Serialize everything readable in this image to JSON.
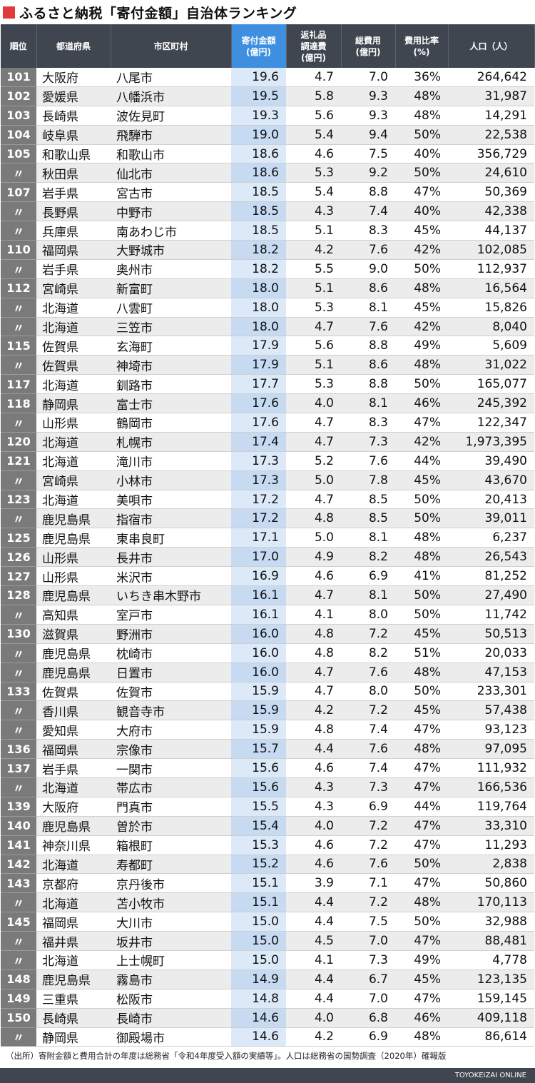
{
  "title": "ふるさと納税「寄付金額」自治体ランキング",
  "colors": {
    "title_mark": "#e0393e",
    "header_bg": "#3f4650",
    "highlight_header": "#3f8fe0"
  },
  "headers": {
    "rank": "順位",
    "pref": "都道府県",
    "city": "市区町村",
    "donation": [
      "寄付金額",
      "(億円)"
    ],
    "gift": [
      "返礼品",
      "調達費",
      "(億円)"
    ],
    "total": [
      "総費用",
      "(億円)"
    ],
    "ratio": [
      "費用比率",
      "(%)"
    ],
    "pop": "人口（人）"
  },
  "rows": [
    [
      "101",
      "大阪府",
      "八尾市",
      "19.6",
      "4.7",
      "7.0",
      "36%",
      "264,642"
    ],
    [
      "102",
      "愛媛県",
      "八幡浜市",
      "19.5",
      "5.8",
      "9.3",
      "48%",
      "31,987"
    ],
    [
      "103",
      "長崎県",
      "波佐見町",
      "19.3",
      "5.6",
      "9.3",
      "48%",
      "14,291"
    ],
    [
      "104",
      "岐阜県",
      "飛騨市",
      "19.0",
      "5.4",
      "9.4",
      "50%",
      "22,538"
    ],
    [
      "105",
      "和歌山県",
      "和歌山市",
      "18.6",
      "4.6",
      "7.5",
      "40%",
      "356,729"
    ],
    [
      "〃",
      "秋田県",
      "仙北市",
      "18.6",
      "5.3",
      "9.2",
      "50%",
      "24,610"
    ],
    [
      "107",
      "岩手県",
      "宮古市",
      "18.5",
      "5.4",
      "8.8",
      "47%",
      "50,369"
    ],
    [
      "〃",
      "長野県",
      "中野市",
      "18.5",
      "4.3",
      "7.4",
      "40%",
      "42,338"
    ],
    [
      "〃",
      "兵庫県",
      "南あわじ市",
      "18.5",
      "5.1",
      "8.3",
      "45%",
      "44,137"
    ],
    [
      "110",
      "福岡県",
      "大野城市",
      "18.2",
      "4.2",
      "7.6",
      "42%",
      "102,085"
    ],
    [
      "〃",
      "岩手県",
      "奥州市",
      "18.2",
      "5.5",
      "9.0",
      "50%",
      "112,937"
    ],
    [
      "112",
      "宮崎県",
      "新富町",
      "18.0",
      "5.1",
      "8.6",
      "48%",
      "16,564"
    ],
    [
      "〃",
      "北海道",
      "八雲町",
      "18.0",
      "5.3",
      "8.1",
      "45%",
      "15,826"
    ],
    [
      "〃",
      "北海道",
      "三笠市",
      "18.0",
      "4.7",
      "7.6",
      "42%",
      "8,040"
    ],
    [
      "115",
      "佐賀県",
      "玄海町",
      "17.9",
      "5.6",
      "8.8",
      "49%",
      "5,609"
    ],
    [
      "〃",
      "佐賀県",
      "神埼市",
      "17.9",
      "5.1",
      "8.6",
      "48%",
      "31,022"
    ],
    [
      "117",
      "北海道",
      "釧路市",
      "17.7",
      "5.3",
      "8.8",
      "50%",
      "165,077"
    ],
    [
      "118",
      "静岡県",
      "富士市",
      "17.6",
      "4.0",
      "8.1",
      "46%",
      "245,392"
    ],
    [
      "〃",
      "山形県",
      "鶴岡市",
      "17.6",
      "4.7",
      "8.3",
      "47%",
      "122,347"
    ],
    [
      "120",
      "北海道",
      "札幌市",
      "17.4",
      "4.7",
      "7.3",
      "42%",
      "1,973,395"
    ],
    [
      "121",
      "北海道",
      "滝川市",
      "17.3",
      "5.2",
      "7.6",
      "44%",
      "39,490"
    ],
    [
      "〃",
      "宮崎県",
      "小林市",
      "17.3",
      "5.0",
      "7.8",
      "45%",
      "43,670"
    ],
    [
      "123",
      "北海道",
      "美唄市",
      "17.2",
      "4.7",
      "8.5",
      "50%",
      "20,413"
    ],
    [
      "〃",
      "鹿児島県",
      "指宿市",
      "17.2",
      "4.8",
      "8.5",
      "50%",
      "39,011"
    ],
    [
      "125",
      "鹿児島県",
      "東串良町",
      "17.1",
      "5.0",
      "8.1",
      "48%",
      "6,237"
    ],
    [
      "126",
      "山形県",
      "長井市",
      "17.0",
      "4.9",
      "8.2",
      "48%",
      "26,543"
    ],
    [
      "127",
      "山形県",
      "米沢市",
      "16.9",
      "4.6",
      "6.9",
      "41%",
      "81,252"
    ],
    [
      "128",
      "鹿児島県",
      "いちき串木野市",
      "16.1",
      "4.7",
      "8.1",
      "50%",
      "27,490"
    ],
    [
      "〃",
      "高知県",
      "室戸市",
      "16.1",
      "4.1",
      "8.0",
      "50%",
      "11,742"
    ],
    [
      "130",
      "滋賀県",
      "野洲市",
      "16.0",
      "4.8",
      "7.2",
      "45%",
      "50,513"
    ],
    [
      "〃",
      "鹿児島県",
      "枕崎市",
      "16.0",
      "4.8",
      "8.2",
      "51%",
      "20,033"
    ],
    [
      "〃",
      "鹿児島県",
      "日置市",
      "16.0",
      "4.7",
      "7.6",
      "48%",
      "47,153"
    ],
    [
      "133",
      "佐賀県",
      "佐賀市",
      "15.9",
      "4.7",
      "8.0",
      "50%",
      "233,301"
    ],
    [
      "〃",
      "香川県",
      "観音寺市",
      "15.9",
      "4.2",
      "7.2",
      "45%",
      "57,438"
    ],
    [
      "〃",
      "愛知県",
      "大府市",
      "15.9",
      "4.8",
      "7.4",
      "47%",
      "93,123"
    ],
    [
      "136",
      "福岡県",
      "宗像市",
      "15.7",
      "4.4",
      "7.6",
      "48%",
      "97,095"
    ],
    [
      "137",
      "岩手県",
      "一関市",
      "15.6",
      "4.6",
      "7.4",
      "47%",
      "111,932"
    ],
    [
      "〃",
      "北海道",
      "帯広市",
      "15.6",
      "4.3",
      "7.3",
      "47%",
      "166,536"
    ],
    [
      "139",
      "大阪府",
      "門真市",
      "15.5",
      "4.3",
      "6.9",
      "44%",
      "119,764"
    ],
    [
      "140",
      "鹿児島県",
      "曽於市",
      "15.4",
      "4.0",
      "7.2",
      "47%",
      "33,310"
    ],
    [
      "141",
      "神奈川県",
      "箱根町",
      "15.3",
      "4.6",
      "7.2",
      "47%",
      "11,293"
    ],
    [
      "142",
      "北海道",
      "寿都町",
      "15.2",
      "4.6",
      "7.6",
      "50%",
      "2,838"
    ],
    [
      "143",
      "京都府",
      "京丹後市",
      "15.1",
      "3.9",
      "7.1",
      "47%",
      "50,860"
    ],
    [
      "〃",
      "北海道",
      "苫小牧市",
      "15.1",
      "4.4",
      "7.2",
      "48%",
      "170,113"
    ],
    [
      "145",
      "福岡県",
      "大川市",
      "15.0",
      "4.4",
      "7.5",
      "50%",
      "32,988"
    ],
    [
      "〃",
      "福井県",
      "坂井市",
      "15.0",
      "4.5",
      "7.0",
      "47%",
      "88,481"
    ],
    [
      "〃",
      "北海道",
      "上士幌町",
      "15.0",
      "4.1",
      "7.3",
      "49%",
      "4,778"
    ],
    [
      "148",
      "鹿児島県",
      "霧島市",
      "14.9",
      "4.4",
      "6.7",
      "45%",
      "123,135"
    ],
    [
      "149",
      "三重県",
      "松阪市",
      "14.8",
      "4.4",
      "7.0",
      "47%",
      "159,145"
    ],
    [
      "150",
      "長崎県",
      "長崎市",
      "14.6",
      "4.0",
      "6.8",
      "46%",
      "409,118"
    ],
    [
      "〃",
      "静岡県",
      "御殿場市",
      "14.6",
      "4.2",
      "6.9",
      "48%",
      "86,614"
    ]
  ],
  "footer": "（出所）寄附金額と費用合計の年度は総務省「令和4年度受入額の実績等」。人口は総務省の国勢調査（2020年）確報版",
  "brand": "TOYOKEIZAI ONLINE"
}
